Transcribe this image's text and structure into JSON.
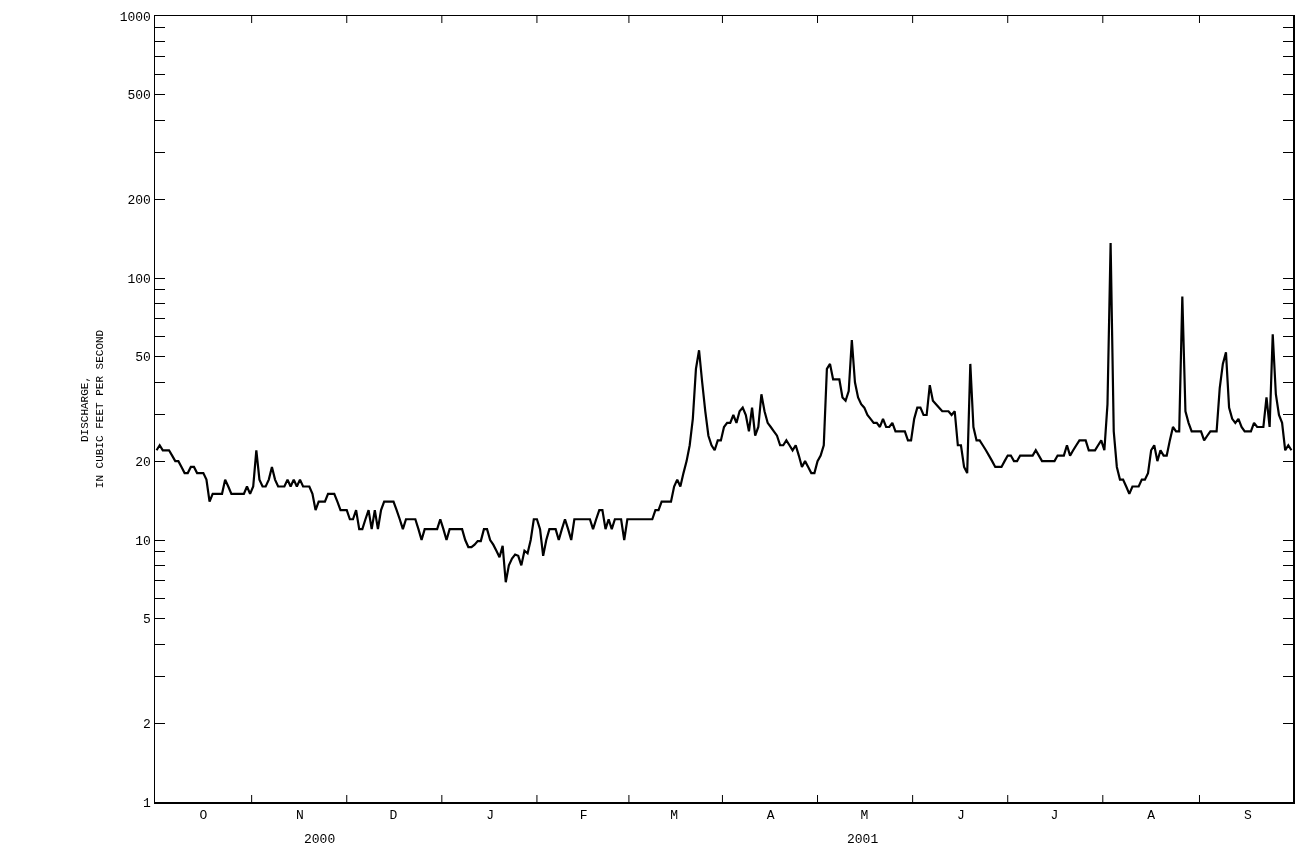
{
  "chart_data": {
    "type": "line",
    "ylabel": "DISCHARGE,\nIN CUBIC FEET PER SECOND",
    "log": "y",
    "grid": false,
    "marker": "none",
    "line_style": "solid",
    "categories": [
      null,
      null,
      null,
      null,
      null,
      null,
      null,
      null,
      null,
      null,
      null,
      null,
      null,
      null,
      null,
      "O",
      null,
      null,
      null,
      null,
      null,
      null,
      null,
      null,
      null,
      null,
      null,
      null,
      null,
      null,
      null,
      null,
      null,
      null,
      null,
      null,
      null,
      null,
      null,
      null,
      null,
      null,
      null,
      null,
      null,
      null,
      "N",
      null,
      null,
      null,
      null,
      null,
      null,
      null,
      null,
      null,
      null,
      null,
      null,
      null,
      null,
      null,
      null,
      null,
      null,
      null,
      null,
      null,
      null,
      null,
      null,
      null,
      null,
      null,
      null,
      null,
      "D",
      null,
      null,
      null,
      null,
      null,
      null,
      null,
      null,
      null,
      null,
      null,
      null,
      null,
      null,
      null,
      null,
      null,
      null,
      null,
      null,
      null,
      null,
      null,
      null,
      null,
      null,
      null,
      null,
      null,
      null,
      "J",
      null,
      null,
      null,
      null,
      null,
      null,
      null,
      null,
      null,
      null,
      null,
      null,
      null,
      null,
      null,
      null,
      null,
      null,
      null,
      null,
      null,
      null,
      null,
      null,
      null,
      null,
      null,
      null,
      null,
      "F",
      null,
      null,
      null,
      null,
      null,
      null,
      null,
      null,
      null,
      null,
      null,
      null,
      null,
      null,
      null,
      null,
      null,
      null,
      null,
      null,
      null,
      null,
      null,
      null,
      null,
      null,
      null,
      null,
      "M",
      null,
      null,
      null,
      null,
      null,
      null,
      null,
      null,
      null,
      null,
      null,
      null,
      null,
      null,
      null,
      null,
      null,
      null,
      null,
      null,
      null,
      null,
      null,
      null,
      null,
      null,
      null,
      null,
      null,
      null,
      "A",
      null,
      null,
      null,
      null,
      null,
      null,
      null,
      null,
      null,
      null,
      null,
      null,
      null,
      null,
      null,
      null,
      null,
      null,
      null,
      null,
      null,
      null,
      null,
      null,
      null,
      null,
      null,
      null,
      null,
      "M",
      null,
      null,
      null,
      null,
      null,
      null,
      null,
      null,
      null,
      null,
      null,
      null,
      null,
      null,
      null,
      null,
      null,
      null,
      null,
      null,
      null,
      null,
      null,
      null,
      null,
      null,
      null,
      null,
      null,
      null,
      "J",
      null,
      null,
      null,
      null,
      null,
      null,
      null,
      null,
      null,
      null,
      null,
      null,
      null,
      null,
      null,
      null,
      null,
      null,
      null,
      null,
      null,
      null,
      null,
      null,
      null,
      null,
      null,
      null,
      null,
      "J",
      null,
      null,
      null,
      null,
      null,
      null,
      null,
      null,
      null,
      null,
      null,
      null,
      null,
      null,
      null,
      null,
      null,
      null,
      null,
      null,
      null,
      null,
      null,
      null,
      null,
      null,
      null,
      null,
      null,
      null,
      "A",
      null,
      null,
      null,
      null,
      null,
      null,
      null,
      null,
      null,
      null,
      null,
      null,
      null,
      null,
      null,
      null,
      null,
      null,
      null,
      null,
      null,
      null,
      null,
      null,
      null,
      null,
      null,
      null,
      null,
      null,
      "S",
      null,
      null,
      null,
      null,
      null,
      null,
      null,
      null,
      null,
      null,
      null,
      null,
      null,
      null
    ],
    "ylim": [
      1,
      1000
    ],
    "yticks": [
      1,
      2,
      {
        "value": 3,
        "label": null
      },
      {
        "value": 4,
        "label": null
      },
      5,
      {
        "value": 6,
        "label": null
      },
      {
        "value": 7,
        "label": null
      },
      {
        "value": 8,
        "label": null
      },
      {
        "value": 9,
        "label": null
      },
      10,
      20,
      {
        "value": 30,
        "label": null
      },
      {
        "value": 40,
        "label": null
      },
      50,
      {
        "value": 60,
        "label": null
      },
      {
        "value": 70,
        "label": null
      },
      {
        "value": 80,
        "label": null
      },
      {
        "value": 90,
        "label": null
      },
      100,
      200,
      {
        "value": 300,
        "label": null
      },
      {
        "value": 400,
        "label": null
      },
      500,
      {
        "value": 600,
        "label": null
      },
      {
        "value": 700,
        "label": null
      },
      {
        "value": 800,
        "label": null
      },
      {
        "value": 900,
        "label": null
      },
      1000
    ],
    "annotations": [
      "2000",
      "2001"
    ],
    "series": [
      {
        "color": "#000000",
        "values": [
          22,
          23,
          22,
          22,
          22,
          21,
          20,
          20,
          19,
          18,
          18,
          19,
          19,
          18,
          18,
          18,
          17,
          14,
          15,
          15,
          15,
          15,
          17,
          16,
          15,
          15,
          15,
          15,
          15,
          16,
          15,
          16,
          22,
          17,
          16,
          16,
          17,
          19,
          17,
          16,
          16,
          16,
          17,
          16,
          17,
          16,
          17,
          16,
          16,
          16,
          15,
          13,
          14,
          14,
          14,
          15,
          15,
          15,
          14,
          13,
          13,
          13,
          12,
          12,
          13,
          11,
          11,
          12,
          13,
          11,
          13,
          11,
          13,
          14,
          14,
          14,
          14,
          13,
          12,
          11,
          12,
          12,
          12,
          12,
          11,
          10,
          11,
          11,
          11,
          11,
          11,
          12,
          11,
          10,
          11,
          11,
          11,
          11,
          11,
          10,
          9.4,
          9.4,
          9.6,
          9.9,
          9.9,
          11,
          11,
          10,
          9.6,
          9.1,
          8.6,
          9.5,
          6.9,
          8,
          8.5,
          8.8,
          8.7,
          8,
          9.1,
          8.9,
          10,
          12,
          12,
          11,
          8.7,
          10,
          11,
          11,
          11,
          10,
          11,
          12,
          11,
          10,
          12,
          12,
          12,
          12,
          12,
          12,
          11,
          12,
          13,
          13,
          11,
          12,
          11,
          12,
          12,
          12,
          10,
          12,
          12,
          12,
          12,
          12,
          12,
          12,
          12,
          12,
          13,
          13,
          14,
          14,
          14,
          14,
          16,
          17,
          16,
          18,
          20,
          23,
          29,
          45,
          53,
          40,
          31,
          25,
          23,
          22,
          24,
          24,
          27,
          28,
          28,
          30,
          28,
          31,
          32,
          30,
          26,
          32,
          25,
          27,
          36,
          31,
          28,
          27,
          26,
          25,
          23,
          23,
          24,
          23,
          22,
          23,
          21,
          19,
          20,
          19,
          18,
          18,
          20,
          21,
          23,
          45,
          47,
          41,
          41,
          41,
          35,
          34,
          37,
          58,
          40,
          35,
          33,
          32,
          30,
          29,
          28,
          28,
          27,
          29,
          27,
          27,
          28,
          26,
          26,
          26,
          26,
          24,
          24,
          29,
          32,
          32,
          30,
          30,
          39,
          34,
          33,
          32,
          31,
          31,
          31,
          30,
          31,
          23,
          23,
          19,
          18,
          47,
          27,
          24,
          24,
          23,
          22,
          21,
          20,
          19,
          19,
          19,
          20,
          21,
          21,
          20,
          20,
          21,
          21,
          21,
          21,
          21,
          22,
          21,
          20,
          20,
          20,
          20,
          20,
          21,
          21,
          21,
          23,
          21,
          22,
          23,
          24,
          24,
          24,
          22,
          22,
          22,
          23,
          24,
          22,
          33,
          136,
          26,
          19,
          17,
          17,
          16,
          15,
          16,
          16,
          16,
          17,
          17,
          18,
          22,
          23,
          20,
          22,
          21,
          21,
          24,
          27,
          26,
          26,
          85,
          31,
          28,
          26,
          26,
          26,
          26,
          24,
          25,
          26,
          26,
          26,
          38,
          47,
          52,
          32,
          29,
          28,
          29,
          27,
          26,
          26,
          26,
          28,
          27,
          27,
          27,
          35,
          27,
          61,
          36,
          30,
          28,
          22,
          23,
          22
        ]
      }
    ]
  }
}
